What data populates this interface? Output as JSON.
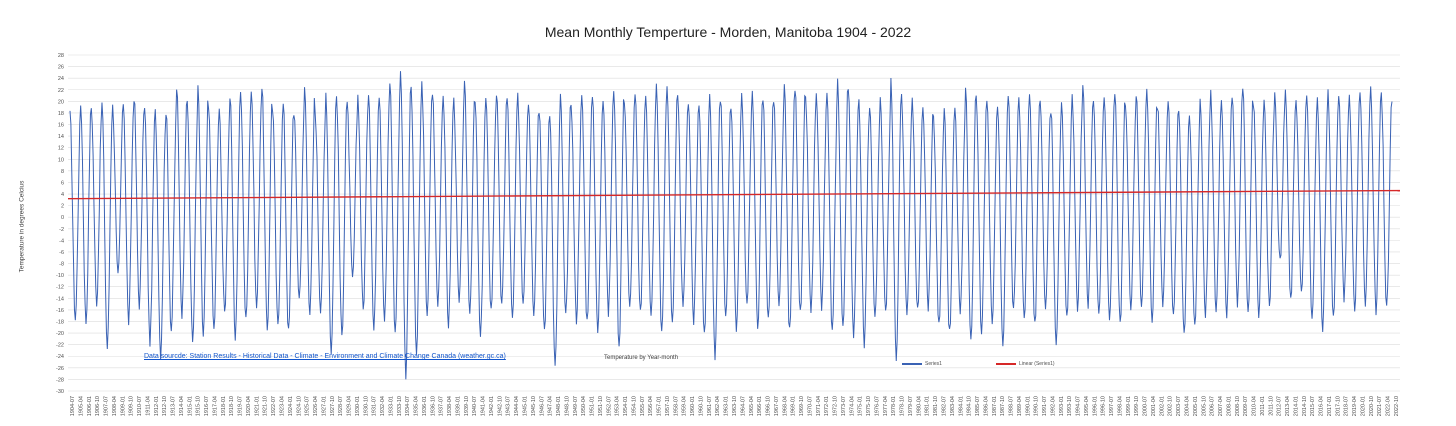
{
  "chart_data": {
    "type": "line",
    "title": "Mean Monthly Temperture - Morden, Manitoba 1904 - 2022",
    "xlabel": "Temperature by Year-month",
    "ylabel": "Temperature in degrees Celcius",
    "ylim": [
      -30,
      28
    ],
    "y_ticks": [
      28,
      26,
      24,
      22,
      20,
      18,
      16,
      14,
      12,
      10,
      8,
      6,
      4,
      2,
      0,
      -2,
      -4,
      -6,
      -8,
      -10,
      -12,
      -14,
      -16,
      -18,
      -20,
      -22,
      -24,
      -26,
      -28,
      -30
    ],
    "x_ticks": [
      "1904-07",
      "1905-04",
      "1906-01",
      "1906-10",
      "1907-07",
      "1908-04",
      "1909-01",
      "1909-10",
      "1910-07",
      "1911-04",
      "1912-01",
      "1912-10",
      "1913-07",
      "1914-04",
      "1915-01",
      "1915-10",
      "1916-07",
      "1917-04",
      "1918-01",
      "1918-10",
      "1919-07",
      "1920-04",
      "1921-01",
      "1921-10",
      "1922-07",
      "1923-04",
      "1924-01",
      "1924-10",
      "1925-07",
      "1926-04",
      "1927-01",
      "1927-10",
      "1928-07",
      "1929-04",
      "1930-01",
      "1930-10",
      "1931-07",
      "1932-04",
      "1933-01",
      "1933-10",
      "1934-07",
      "1935-04",
      "1936-01",
      "1936-10",
      "1937-07",
      "1938-04",
      "1939-01",
      "1939-10",
      "1940-07",
      "1941-04",
      "1942-01",
      "1942-10",
      "1943-07",
      "1944-04",
      "1945-01",
      "1945-10",
      "1946-07",
      "1947-04",
      "1948-01",
      "1948-10",
      "1949-07",
      "1950-04",
      "1951-01",
      "1951-10",
      "1952-07",
      "1953-04",
      "1954-01",
      "1954-10",
      "1955-07",
      "1956-04",
      "1957-01",
      "1957-10",
      "1958-07",
      "1959-04",
      "1960-01",
      "1960-10",
      "1961-07",
      "1962-04",
      "1963-01",
      "1963-10",
      "1964-07",
      "1965-04",
      "1966-01",
      "1966-10",
      "1967-07",
      "1968-04",
      "1969-01",
      "1969-10",
      "1970-07",
      "1971-04",
      "1972-01",
      "1972-10",
      "1973-07",
      "1974-04",
      "1975-01",
      "1975-10",
      "1976-07",
      "1977-04",
      "1978-01",
      "1978-10",
      "1979-07",
      "1980-04",
      "1981-01",
      "1981-10",
      "1982-07",
      "1983-04",
      "1984-01",
      "1984-10",
      "1985-07",
      "1986-04",
      "1987-01",
      "1987-10",
      "1988-07",
      "1989-04",
      "1990-01",
      "1990-10",
      "1991-07",
      "1992-04",
      "1993-01",
      "1993-10",
      "1994-07",
      "1995-04",
      "1996-01",
      "1996-10",
      "1997-07",
      "1998-04",
      "1999-01",
      "1999-10",
      "2000-07",
      "2001-04",
      "2002-01",
      "2002-10",
      "2003-07",
      "2004-04",
      "2005-01",
      "2005-10",
      "2006-07",
      "2007-04",
      "2008-01",
      "2008-10",
      "2009-07",
      "2010-04",
      "2011-01",
      "2011-10",
      "2012-07",
      "2013-04",
      "2014-01",
      "2014-10",
      "2015-07",
      "2016-04",
      "2017-01",
      "2017-10",
      "2018-07",
      "2019-04",
      "2020-01",
      "2020-10",
      "2021-07",
      "2022-04",
      "2022-10"
    ],
    "series": [
      {
        "name": "Series1",
        "color": "#3a62b4",
        "peaks": [
          17.5,
          19.5,
          19,
          19.5,
          19,
          20,
          21,
          18.5,
          18,
          18.5,
          22.5,
          19,
          22,
          18.5,
          18,
          21,
          21.5,
          22,
          22.5,
          19,
          19.5,
          18.5,
          22.5,
          18,
          21.5,
          21,
          19,
          21,
          22,
          21.5,
          23.5,
          25.5,
          21.5,
          23,
          21.5,
          21,
          20,
          22.5,
          19.5,
          20.5,
          21.5,
          20.5,
          20.5,
          20,
          19,
          18.5,
          20.5,
          20,
          20.5,
          21.5,
          21,
          22.5,
          20.5,
          21,
          21.5,
          22.5,
          22,
          20,
          20.5,
          19,
          21.5,
          21,
          19.5,
          21.5,
          21.5,
          20.5,
          20.5,
          22,
          22.5,
          20.5,
          20.5,
          21,
          23.5,
          22,
          19.5,
          19,
          20,
          23.5,
          20.5,
          20,
          19.5,
          16.5,
          19,
          19,
          22,
          20.5,
          20.5,
          20,
          20.5,
          20,
          22,
          20.5,
          19,
          19,
          21,
          22,
          20.5,
          20.5,
          21.5,
          19.5,
          21.5,
          22,
          19.5,
          20,
          18.5,
          17.5,
          20.5,
          21,
          20,
          21.5,
          23,
          19.5,
          20.5,
          20.5,
          21.5,
          20.5,
          21,
          20,
          21,
          20.5,
          21,
          22,
          22.5,
          20.5
        ],
        "troughs": [
          -17.5,
          -18,
          -14.5,
          -22.5,
          -10.5,
          -18,
          -15,
          -21.5,
          -23.5,
          -19.5,
          -16.5,
          -21.5,
          -20.5,
          -19.5,
          -16.5,
          -20.5,
          -18,
          -15.5,
          -19.5,
          -19,
          -20,
          -14,
          -16.5,
          -15.5,
          -23,
          -20.5,
          -11,
          -16,
          -19.5,
          -17.5,
          -20,
          -27,
          -23.5,
          -16.5,
          -15,
          -18.5,
          -15,
          -16,
          -21,
          -16,
          -15.5,
          -18,
          -14.5,
          -16,
          -19.5,
          -26,
          -17.5,
          -17.5,
          -18,
          -20,
          -16.5,
          -22,
          -16,
          -17,
          -17.5,
          -20,
          -18,
          -16,
          -18,
          -20,
          -24.5,
          -17,
          -19.5,
          -15.5,
          -19,
          -18,
          -16,
          -20,
          -17,
          -16.5,
          -15.5,
          -20,
          -19.5,
          -20,
          -22,
          -18,
          -16.5,
          -24.5,
          -17,
          -16.5,
          -15.5,
          -19,
          -20,
          -17,
          -22,
          -20,
          -19,
          -22.5,
          -16,
          -17.5,
          -19,
          -16,
          -21,
          -18,
          -15.5,
          -15,
          -17,
          -17.5,
          -19,
          -15,
          -15,
          -18,
          -14.5,
          -17.5,
          -20,
          -19,
          -16.5,
          -16,
          -16.5,
          -14.5,
          -17,
          -16.5,
          -15.5,
          -8,
          -14.5,
          -13.5,
          -18,
          -19,
          -17.5,
          -14,
          -15.5,
          -15,
          -16.5,
          -16,
          -14
        ],
        "summary": "monthly mean temperature oscillating annually between summer peaks and winter troughs, Jul 1904 - Oct 2022"
      },
      {
        "name": "Linear (Series1)",
        "color": "#d62828",
        "start": [
          1904,
          3.2
        ],
        "end": [
          2022,
          4.6
        ]
      }
    ],
    "legend": [
      "Series1",
      "Linear (Series1)"
    ],
    "legend_placement": "bottom",
    "grid": true,
    "annotation": "Data sourcde: Station Results - Historical Data - Climate - Environment and Climate Change Canada (weather.gc.ca)"
  }
}
